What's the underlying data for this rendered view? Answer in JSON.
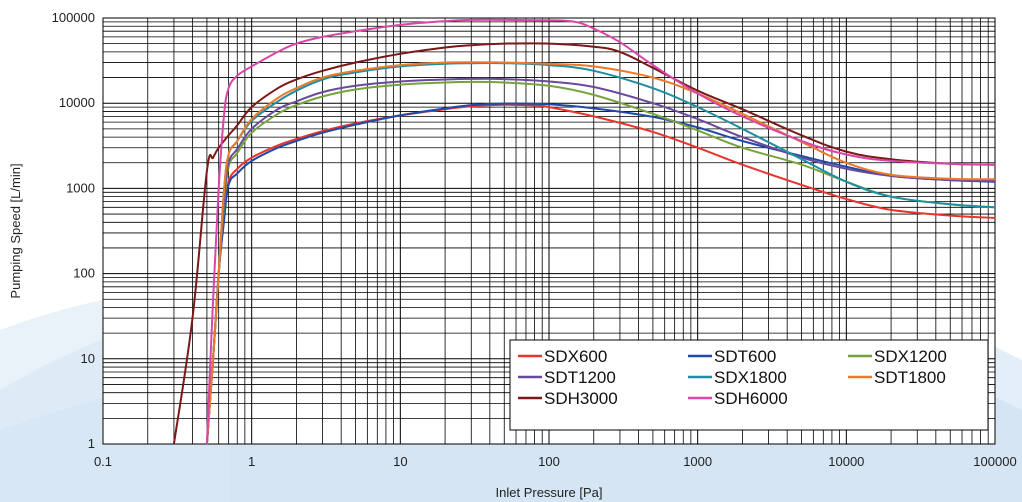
{
  "chart_data": {
    "type": "line",
    "title": "",
    "xlabel": "Inlet Pressure [Pa]",
    "ylabel": "Pumping Speed [L/min]",
    "xscale": "log",
    "yscale": "log",
    "xlim": [
      0.1,
      100000
    ],
    "ylim": [
      1,
      100000
    ],
    "xticks": [
      "0.1",
      "1",
      "10",
      "100",
      "1000",
      "10000",
      "100000"
    ],
    "yticks": [
      "1",
      "10",
      "100",
      "1000",
      "10000",
      "100000"
    ],
    "grid": true,
    "legend_position": "bottom-right",
    "legend_columns": 3,
    "series": [
      {
        "name": "SDX600",
        "color": "#e8342c",
        "x": [
          0.5,
          0.55,
          0.6,
          0.65,
          0.7,
          0.8,
          1,
          1.5,
          2,
          3,
          5,
          10,
          20,
          30,
          50,
          80,
          100,
          200,
          500,
          1000,
          2000,
          5000,
          10000,
          20000,
          50000,
          100000
        ],
        "y": [
          1,
          10,
          100,
          500,
          1200,
          1700,
          2300,
          3200,
          3800,
          4700,
          5800,
          7200,
          8500,
          9200,
          9600,
          9400,
          9000,
          7000,
          4600,
          3000,
          1900,
          1100,
          750,
          560,
          480,
          450
        ]
      },
      {
        "name": "SDT600",
        "color": "#1f4aa8",
        "x": [
          0.5,
          0.55,
          0.6,
          0.65,
          0.7,
          0.8,
          1,
          1.5,
          2,
          3,
          5,
          10,
          20,
          30,
          50,
          100,
          200,
          500,
          1000,
          2000,
          5000,
          10000,
          20000,
          50000,
          100000
        ],
        "y": [
          1,
          10,
          100,
          400,
          1100,
          1500,
          2100,
          3000,
          3600,
          4500,
          5600,
          7200,
          8700,
          9500,
          9900,
          9700,
          8700,
          6900,
          5200,
          3600,
          2400,
          1800,
          1400,
          1250,
          1200
        ]
      },
      {
        "name": "SDX1200",
        "color": "#76a33c",
        "x": [
          0.5,
          0.55,
          0.6,
          0.65,
          0.7,
          0.8,
          1,
          1.5,
          2,
          3,
          5,
          10,
          20,
          30,
          50,
          100,
          200,
          500,
          1000,
          2000,
          5000,
          10000,
          20000,
          50000,
          100000
        ],
        "y": [
          1,
          10,
          100,
          600,
          1800,
          2600,
          4500,
          7500,
          9500,
          12000,
          14500,
          16500,
          17500,
          17800,
          17500,
          16000,
          12500,
          7500,
          4800,
          3000,
          1900,
          1200,
          800,
          650,
          600
        ]
      },
      {
        "name": "SDT1200",
        "color": "#6a4a9c",
        "x": [
          0.5,
          0.55,
          0.6,
          0.65,
          0.7,
          0.8,
          1,
          1.5,
          2,
          3,
          5,
          10,
          20,
          30,
          50,
          100,
          200,
          500,
          1000,
          2000,
          5000,
          10000,
          20000,
          50000,
          100000
        ],
        "y": [
          1,
          10,
          100,
          700,
          2000,
          2900,
          5000,
          8500,
          10500,
          13500,
          16000,
          18000,
          19000,
          19300,
          19200,
          18000,
          15500,
          10000,
          6500,
          4000,
          2300,
          1700,
          1400,
          1250,
          1220
        ]
      },
      {
        "name": "SDX1800",
        "color": "#1e8fa3",
        "x": [
          0.5,
          0.55,
          0.6,
          0.65,
          0.7,
          0.8,
          1,
          1.5,
          2,
          3,
          5,
          10,
          20,
          30,
          50,
          100,
          200,
          500,
          1000,
          2000,
          5000,
          10000,
          20000,
          50000,
          100000
        ],
        "y": [
          1,
          10,
          100,
          900,
          2500,
          3600,
          6200,
          10500,
          14000,
          19000,
          23000,
          27000,
          29000,
          29500,
          29500,
          28000,
          24000,
          15000,
          9000,
          5000,
          2200,
          1200,
          800,
          650,
          600
        ]
      },
      {
        "name": "SDT1800",
        "color": "#ec7a2c",
        "x": [
          0.5,
          0.55,
          0.6,
          0.65,
          0.7,
          0.8,
          1,
          1.5,
          2,
          3,
          5,
          10,
          20,
          30,
          50,
          100,
          200,
          500,
          1000,
          2000,
          5000,
          10000,
          20000,
          50000,
          100000
        ],
        "y": [
          1,
          10,
          100,
          900,
          2500,
          3600,
          6500,
          11500,
          15000,
          20000,
          24000,
          28000,
          30000,
          30200,
          30000,
          29000,
          27000,
          20000,
          13000,
          7500,
          3500,
          2000,
          1450,
          1300,
          1280
        ]
      },
      {
        "name": "SDH3000",
        "color": "#7b1818",
        "x": [
          0.3,
          0.4,
          0.5,
          0.55,
          0.6,
          0.7,
          0.8,
          1,
          1.5,
          2,
          3,
          5,
          10,
          20,
          30,
          50,
          100,
          200,
          300,
          500,
          1000,
          2000,
          5000,
          10000,
          20000,
          50000,
          100000
        ],
        "y": [
          1,
          30,
          1600,
          2300,
          3000,
          4200,
          5500,
          9000,
          15000,
          19000,
          24000,
          30000,
          38000,
          45000,
          48000,
          50000,
          50000,
          46000,
          40000,
          26000,
          14000,
          8500,
          4200,
          2700,
          2200,
          1950,
          1900
        ]
      },
      {
        "name": "SDH6000",
        "color": "#d946a8",
        "x": [
          0.5,
          0.55,
          0.6,
          0.65,
          0.7,
          0.8,
          1,
          1.5,
          2,
          3,
          5,
          10,
          20,
          30,
          50,
          100,
          150,
          200,
          300,
          500,
          1000,
          2000,
          5000,
          10000,
          20000,
          50000,
          100000
        ],
        "y": [
          1,
          50,
          1000,
          7000,
          15000,
          21000,
          27000,
          40000,
          50000,
          60000,
          70000,
          83000,
          92000,
          95000,
          95000,
          94000,
          90000,
          75000,
          52000,
          28000,
          13000,
          7000,
          3600,
          2500,
          2100,
          1950,
          1900
        ]
      }
    ]
  }
}
